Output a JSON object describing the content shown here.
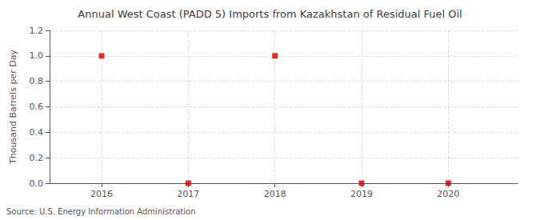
{
  "chart_data": {
    "type": "scatter",
    "title": "Annual West Coast (PADD 5) Imports from Kazakhstan of Residual Fuel Oil",
    "ylabel": "Thousand Barrels per Day",
    "source": "Source: U.S. Energy Information Administration",
    "x": [
      2016,
      2017,
      2018,
      2019,
      2020
    ],
    "values": [
      1.0,
      0.0,
      1.0,
      0.0,
      0.0
    ],
    "color": "#cc0000",
    "marker": "square",
    "xlim": [
      2015.4,
      2020.8
    ],
    "xticks": [
      2016,
      2017,
      2018,
      2019,
      2020
    ],
    "ylim": [
      0.0,
      1.2
    ],
    "yticks": [
      {
        "value": 0.0,
        "label": "0.0"
      },
      {
        "value": 0.2,
        "label": "0.2"
      },
      {
        "value": 0.4,
        "label": "0.4"
      },
      {
        "value": 0.6,
        "label": "0.6"
      },
      {
        "value": 0.8,
        "label": "0.8"
      },
      {
        "value": 1.0,
        "label": "1.0"
      },
      {
        "value": 1.2,
        "label": "1.2"
      }
    ],
    "grid": true
  }
}
